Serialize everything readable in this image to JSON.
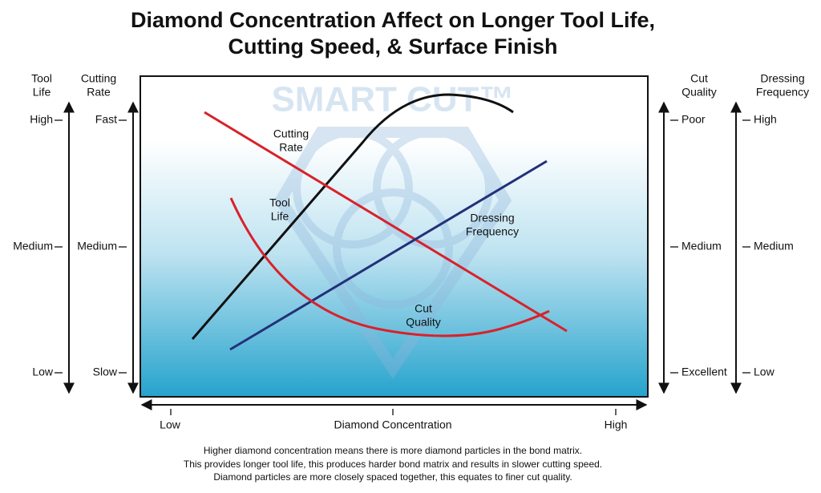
{
  "title": [
    "Diamond Concentration Affect on Longer Tool Life,",
    "Cutting Speed, & Surface Finish"
  ],
  "watermark": "SMART CUT™",
  "axes": [
    {
      "label": [
        "Tool",
        "Life"
      ],
      "ticks": [
        "High",
        "Medium",
        "Low"
      ]
    },
    {
      "label": [
        "Cutting",
        "Rate"
      ],
      "ticks": [
        "Fast",
        "Medium",
        "Slow"
      ]
    },
    {
      "label": [
        "Cut",
        "Quality"
      ],
      "ticks": [
        "Poor",
        "Medium",
        "Excellent"
      ]
    },
    {
      "label": [
        "Dressing",
        "Frequency"
      ],
      "ticks": [
        "High",
        "Medium",
        "Low"
      ]
    }
  ],
  "curves": [
    [
      "Cutting",
      "Rate"
    ],
    [
      "Tool",
      "Life"
    ],
    [
      "Dressing",
      "Frequency"
    ],
    [
      "Cut",
      "Quality"
    ]
  ],
  "x_axis": {
    "low": "Low",
    "label": "Diamond Concentration",
    "high": "High"
  },
  "footnote": [
    "Higher diamond concentration means there is more diamond particles in the bond matrix.",
    "This provides longer tool life, this produces harder bond matrix and results in slower cutting speed.",
    "Diamond particles are more closely spaced together, this equates to finer cut quality."
  ]
}
